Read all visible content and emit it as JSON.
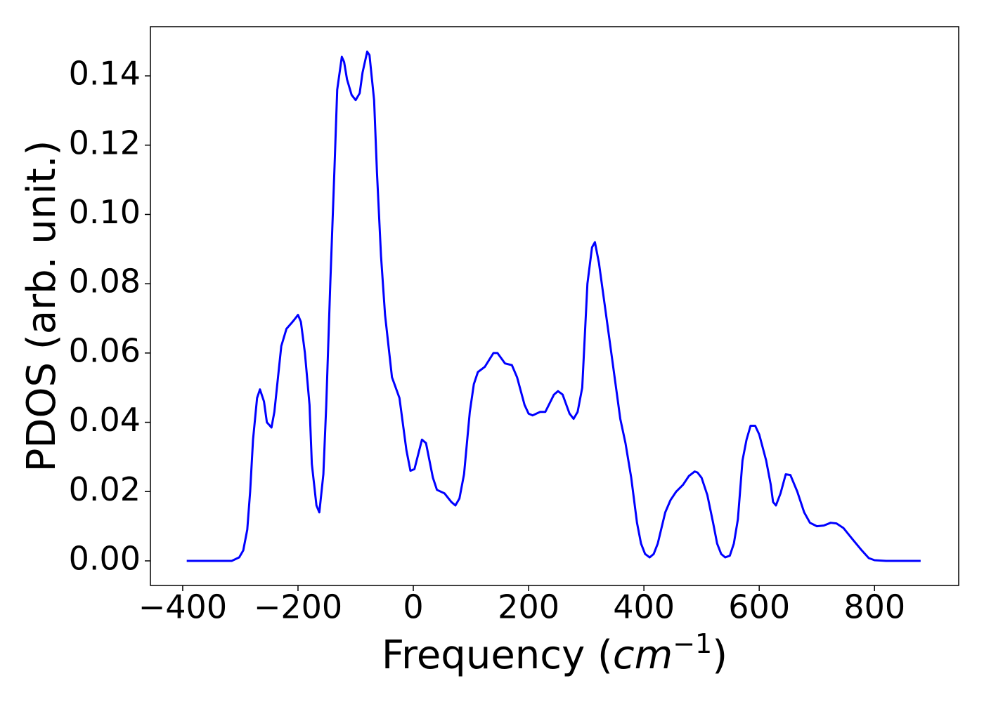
{
  "chart_data": {
    "type": "line",
    "x_label": [
      "Frequency (",
      "cm",
      "−1",
      ")"
    ],
    "y_label": "PDOS (arb. unit.)",
    "x": [
      -393,
      -315,
      -302,
      -295,
      -288,
      -283,
      -278,
      -271,
      -266,
      -259,
      -254,
      -246,
      -241,
      -229,
      -220,
      -212,
      -207,
      -200,
      -195,
      -188,
      -180,
      -176,
      -168,
      -163,
      -156,
      -151,
      -144,
      -137,
      -132,
      -124,
      -120,
      -115,
      -107,
      -100,
      -93,
      -88,
      -80,
      -76,
      -68,
      -63,
      -56,
      -49,
      -37,
      -24,
      -12,
      -5,
      2,
      15,
      22,
      34,
      41,
      54,
      66,
      73,
      80,
      88,
      98,
      105,
      112,
      124,
      139,
      146,
      159,
      171,
      180,
      193,
      200,
      207,
      220,
      229,
      244,
      251,
      259,
      271,
      278,
      285,
      293,
      302,
      310,
      315,
      322,
      341,
      359,
      368,
      378,
      388,
      395,
      402,
      410,
      417,
      424,
      437,
      446,
      456,
      468,
      478,
      488,
      493,
      500,
      510,
      520,
      527,
      534,
      541,
      549,
      556,
      563,
      571,
      578,
      585,
      593,
      600,
      612,
      620,
      624,
      629,
      637,
      646,
      654,
      666,
      678,
      688,
      700,
      712,
      724,
      734,
      746,
      763,
      778,
      790,
      800,
      820,
      880
    ],
    "series": [
      {
        "color": "#0000ff",
        "values": [
          0,
          0,
          0.001,
          0.003,
          0.009,
          0.02,
          0.035,
          0.047,
          0.0495,
          0.046,
          0.04,
          0.0385,
          0.043,
          0.062,
          0.067,
          0.0685,
          0.0695,
          0.071,
          0.069,
          0.06,
          0.045,
          0.028,
          0.016,
          0.014,
          0.025,
          0.045,
          0.08,
          0.112,
          0.136,
          0.1455,
          0.144,
          0.139,
          0.1345,
          0.133,
          0.135,
          0.141,
          0.147,
          0.146,
          0.133,
          0.112,
          0.088,
          0.071,
          0.053,
          0.047,
          0.032,
          0.026,
          0.0265,
          0.035,
          0.034,
          0.024,
          0.0205,
          0.0195,
          0.017,
          0.016,
          0.018,
          0.025,
          0.043,
          0.051,
          0.0545,
          0.056,
          0.06,
          0.06,
          0.057,
          0.0565,
          0.053,
          0.045,
          0.0425,
          0.042,
          0.043,
          0.043,
          0.048,
          0.049,
          0.048,
          0.0425,
          0.041,
          0.043,
          0.05,
          0.08,
          0.0905,
          0.092,
          0.086,
          0.063,
          0.041,
          0.034,
          0.024,
          0.011,
          0.005,
          0.002,
          0.001,
          0.002,
          0.005,
          0.014,
          0.0175,
          0.02,
          0.022,
          0.0245,
          0.0258,
          0.0255,
          0.024,
          0.019,
          0.011,
          0.005,
          0.002,
          0.001,
          0.0015,
          0.005,
          0.012,
          0.029,
          0.035,
          0.039,
          0.039,
          0.0365,
          0.029,
          0.022,
          0.017,
          0.016,
          0.0195,
          0.025,
          0.0248,
          0.02,
          0.014,
          0.011,
          0.01,
          0.0102,
          0.011,
          0.0108,
          0.0095,
          0.006,
          0.003,
          0.0008,
          0.0002,
          0,
          0
        ]
      }
    ],
    "xlim": [
      -456,
      946
    ],
    "ylim": [
      -0.0071,
      0.1542
    ],
    "xticks": [
      {
        "value": -400,
        "label": "−400"
      },
      {
        "value": -200,
        "label": "−200"
      },
      0,
      200,
      400,
      600,
      800
    ],
    "yticks": [
      {
        "value": 0,
        "label": "0.00"
      },
      {
        "value": 0.02,
        "label": "0.02"
      },
      {
        "value": 0.04,
        "label": "0.04"
      },
      {
        "value": 0.06,
        "label": "0.06"
      },
      {
        "value": 0.08,
        "label": "0.08"
      },
      {
        "value": 0.1,
        "label": "0.10"
      },
      {
        "value": 0.12,
        "label": "0.12"
      },
      {
        "value": 0.14,
        "label": "0.14"
      }
    ],
    "grid": false
  }
}
